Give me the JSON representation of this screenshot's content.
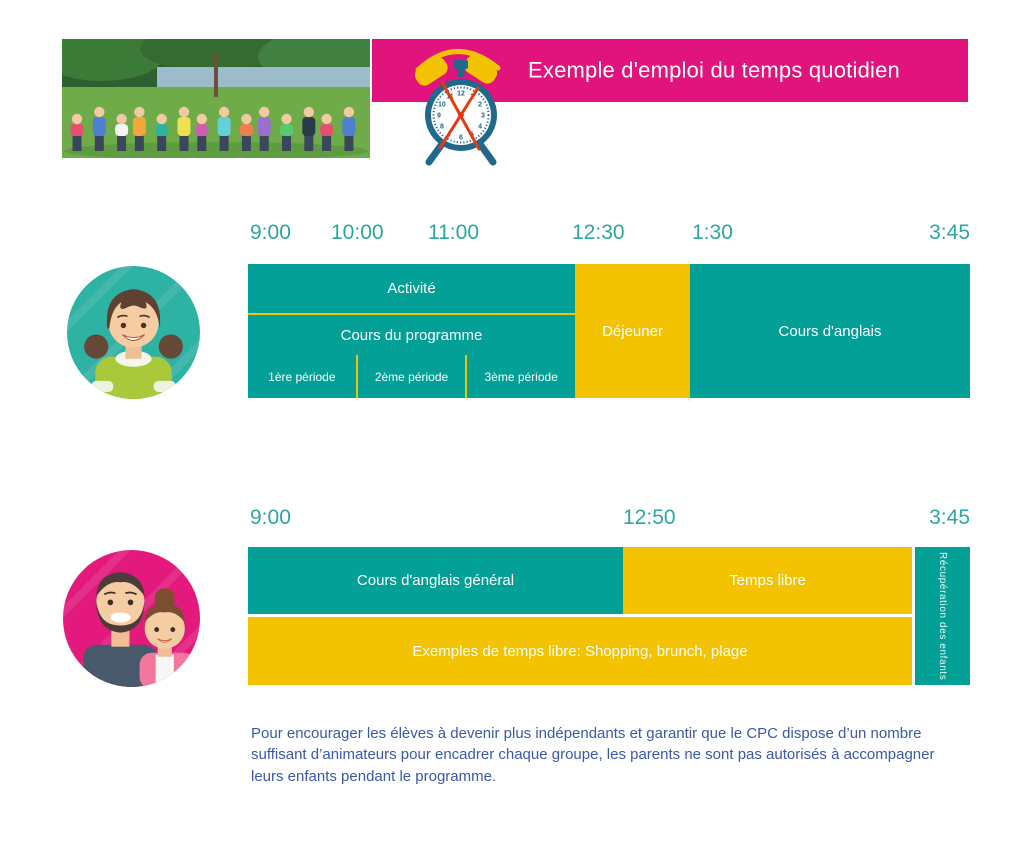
{
  "colors": {
    "teal": "#02A096",
    "yellow": "#F3C200",
    "pink": "#E1147D",
    "time_text": "#2BA79F",
    "note_text": "#3A58AC"
  },
  "header": {
    "title": "Exemple d'emploi du temps quotidien",
    "icons": {
      "clock": "alarm-clock-icon",
      "photo": "children-group-photo"
    }
  },
  "student_schedule": {
    "times": [
      "9:00",
      "10:00",
      "11:00",
      "12:30",
      "1:30",
      "3:45"
    ],
    "activity": "Activité",
    "program_course": "Cours du programme",
    "periods": [
      "1ère période",
      "2ème période",
      "3ème période"
    ],
    "lunch": "Déjeuner",
    "english_course": "Cours d'anglais"
  },
  "parent_schedule": {
    "times": [
      "9:00",
      "12:50",
      "3:45"
    ],
    "general_english": "Cours d'anglais général",
    "free_time": "Temps libre",
    "free_time_examples": "Exemples de temps libre: Shopping, brunch, plage",
    "children_pickup": "Récupération des enfants"
  },
  "note": "Pour encourager les élèves à devenir plus indépendants et garantir que le CPC dispose d’un nombre suffisant d’animateurs pour encadrer chaque groupe, les parents ne sont pas autorisés à accompagner leurs enfants pendant le programme."
}
